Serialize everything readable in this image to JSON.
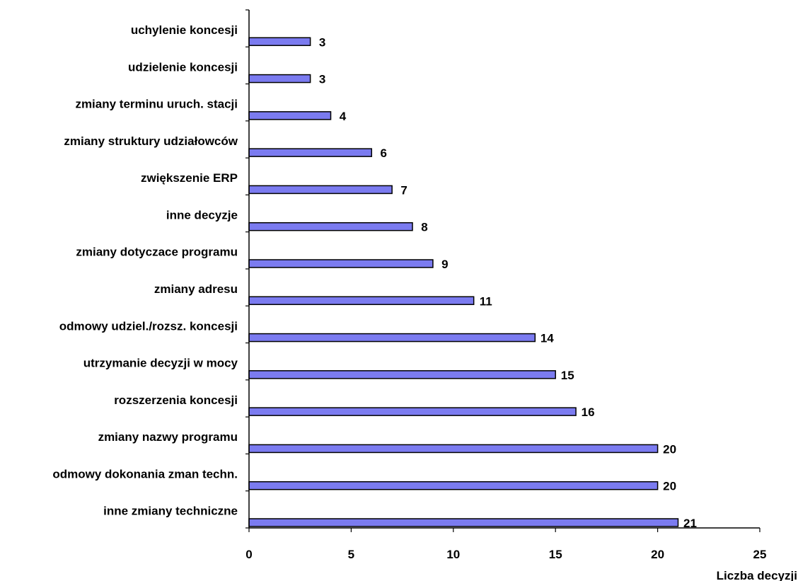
{
  "chart_data": {
    "type": "bar",
    "orientation": "horizontal",
    "categories": [
      "uchylenie koncesji",
      "udzielenie koncesji",
      "zmiany terminu uruch. stacji",
      "zmiany struktury udziałowców",
      "zwiększenie ERP",
      "inne decyzje",
      "zmiany dotyczace programu",
      "zmiany adresu",
      "odmowy udziel./rozsz. koncesji",
      "utrzymanie decyzji w mocy",
      "rozszerzenia koncesji",
      "zmiany nazwy programu",
      "odmowy dokonania zman techn.",
      "inne zmiany techniczne"
    ],
    "values": [
      3,
      3,
      4,
      6,
      7,
      8,
      9,
      11,
      14,
      15,
      16,
      20,
      20,
      21
    ],
    "data_labels": [
      "3",
      "3",
      "4",
      "6",
      "7",
      "8",
      "9",
      "11",
      "14",
      "15",
      "16",
      "20",
      "20",
      "21"
    ],
    "xlabel": "Liczba decyzji",
    "ylabel": "",
    "xlim": [
      0,
      25
    ],
    "xticks": [
      "0",
      "5",
      "10",
      "15",
      "20",
      "25"
    ],
    "grid": false,
    "legend": "none",
    "bar_color": "#7b7bf0",
    "bar_edge_color": "#000000"
  }
}
